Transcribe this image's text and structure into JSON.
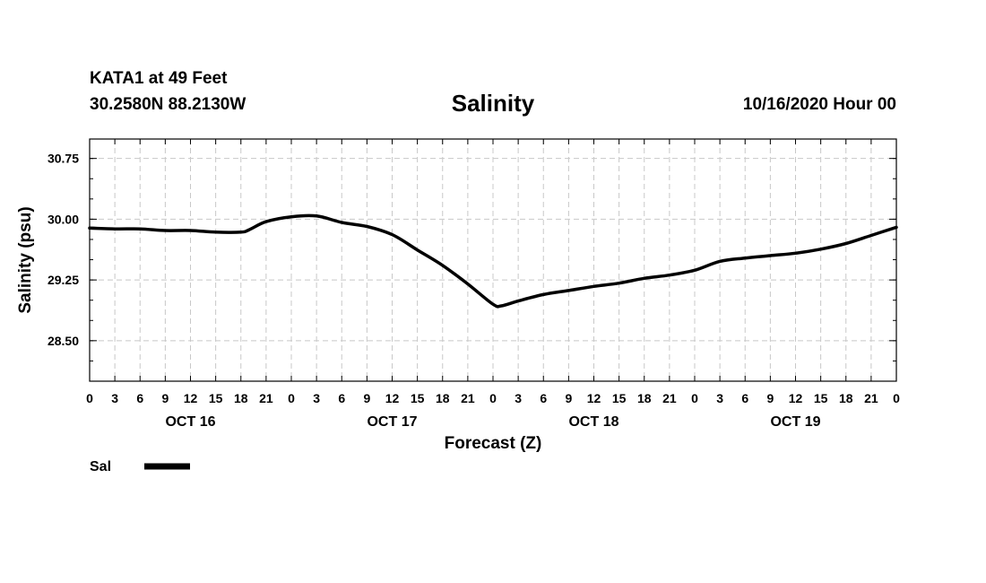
{
  "header": {
    "station": "KATA1 at 49 Feet",
    "coords": "30.2580N 88.2130W",
    "title": "Salinity",
    "run_time": "10/16/2020 Hour 00"
  },
  "chart_data": {
    "type": "line",
    "title": "Salinity",
    "xlabel": "Forecast (Z)",
    "ylabel": "Salinity (psu)",
    "ylim": [
      28.0,
      30.99
    ],
    "yticks": [
      28.5,
      29.25,
      30.0,
      30.75
    ],
    "ytick_labels": [
      "28.50",
      "29.25",
      "30.00",
      "30.75"
    ],
    "xlim_hours": [
      0,
      96
    ],
    "xtick_hours": [
      0,
      3,
      6,
      9,
      12,
      15,
      18,
      21,
      24,
      27,
      30,
      33,
      36,
      39,
      42,
      45,
      48,
      51,
      54,
      57,
      60,
      63,
      66,
      69,
      72,
      75,
      78,
      81,
      84,
      87,
      90,
      93,
      96
    ],
    "xtick_labels": [
      "0",
      "3",
      "6",
      "9",
      "12",
      "15",
      "18",
      "21",
      "0",
      "3",
      "6",
      "9",
      "12",
      "15",
      "18",
      "21",
      "0",
      "3",
      "6",
      "9",
      "12",
      "15",
      "18",
      "21",
      "0",
      "3",
      "6",
      "9",
      "12",
      "15",
      "18",
      "21",
      "0"
    ],
    "day_labels": [
      {
        "label": "OCT 16",
        "hour": 12
      },
      {
        "label": "OCT 17",
        "hour": 36
      },
      {
        "label": "OCT 18",
        "hour": 60
      },
      {
        "label": "OCT 19",
        "hour": 84
      }
    ],
    "grid": true,
    "legend_position": "bottom-left",
    "series": [
      {
        "name": "Sal",
        "x": [
          0,
          3,
          6,
          9,
          12,
          15,
          18,
          19,
          21,
          24,
          27,
          30,
          33,
          36,
          39,
          42,
          45,
          48,
          49,
          51,
          54,
          57,
          60,
          63,
          66,
          69,
          72,
          75,
          78,
          81,
          84,
          87,
          90,
          93,
          96
        ],
        "values": [
          29.89,
          29.88,
          29.88,
          29.86,
          29.86,
          29.84,
          29.84,
          29.87,
          29.97,
          30.03,
          30.04,
          29.96,
          29.91,
          29.81,
          29.62,
          29.43,
          29.2,
          28.95,
          28.93,
          28.99,
          29.07,
          29.12,
          29.17,
          29.21,
          29.27,
          29.31,
          29.37,
          29.48,
          29.52,
          29.55,
          29.58,
          29.63,
          29.7,
          29.8,
          29.9
        ]
      }
    ]
  }
}
